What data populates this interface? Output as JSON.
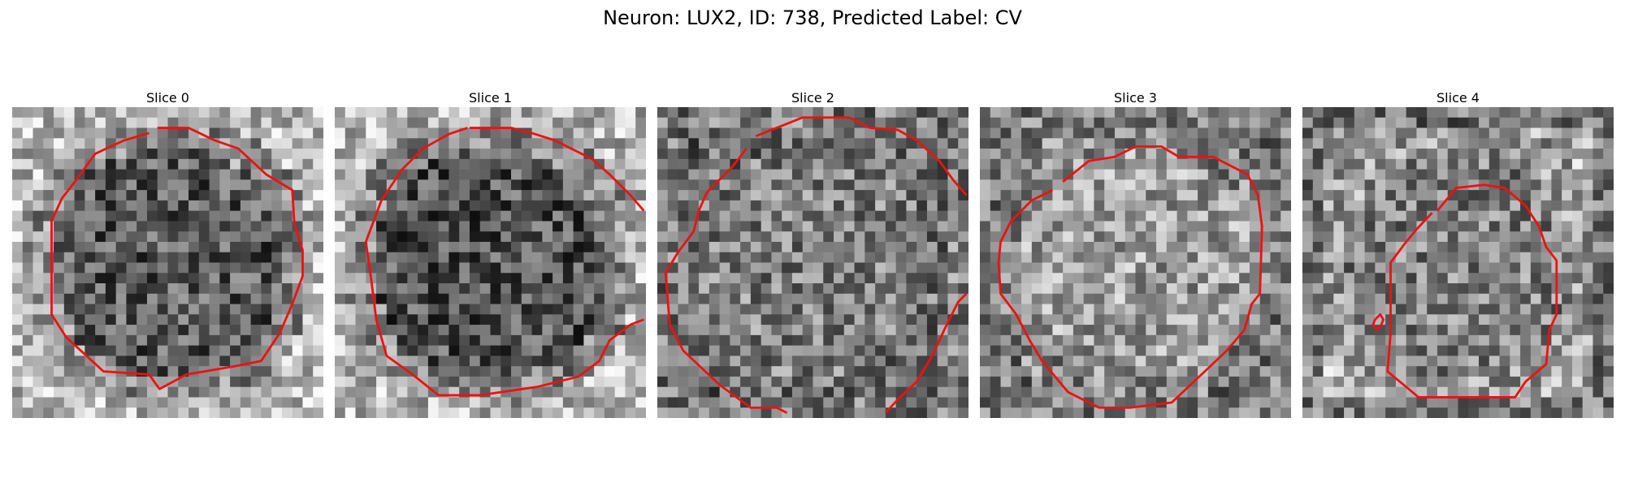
{
  "figure": {
    "title": "Neuron: LUX2, ID: 738, Predicted Label: CV"
  },
  "panels": [
    {
      "label": "Slice 0",
      "grid": 30,
      "seed": 11,
      "inner": 0.35,
      "outer": 0.75,
      "border": 0.72
    },
    {
      "label": "Slice 1",
      "grid": 30,
      "seed": 29,
      "inner": 0.33,
      "outer": 0.72,
      "border": 0.7
    },
    {
      "label": "Slice 2",
      "grid": 30,
      "seed": 47,
      "inner": 0.5,
      "outer": 0.4,
      "border": 0.55
    },
    {
      "label": "Slice 3",
      "grid": 30,
      "seed": 73,
      "inner": 0.62,
      "outer": 0.45,
      "border": 0.5
    },
    {
      "label": "Slice 4",
      "grid": 30,
      "seed": 91,
      "inner": 0.5,
      "outer": 0.7,
      "border": 0.25
    }
  ],
  "contour_color": "#ee1111"
}
